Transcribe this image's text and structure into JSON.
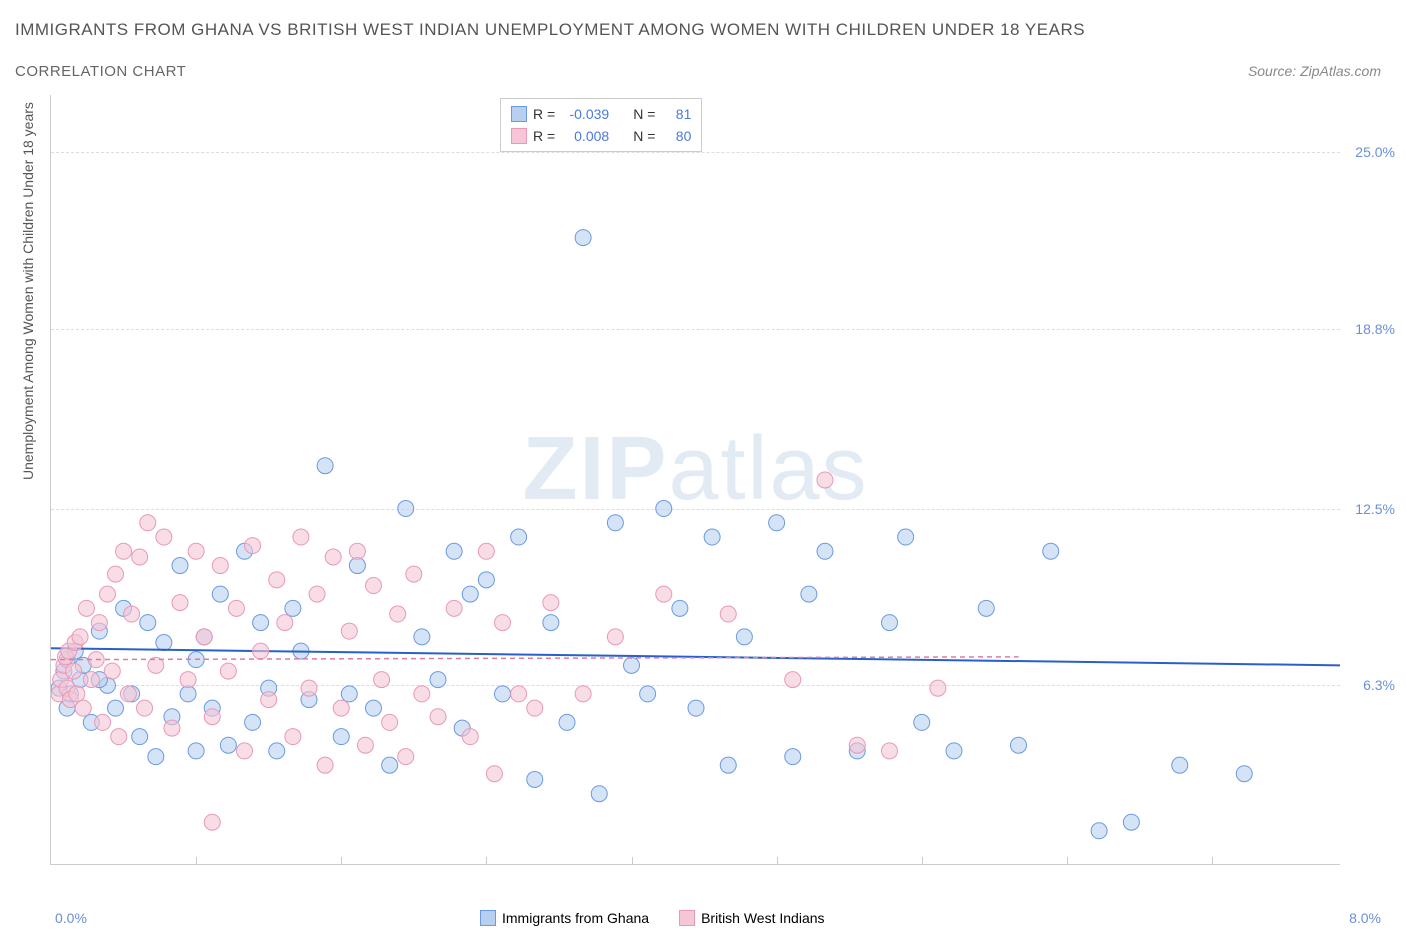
{
  "title": "IMMIGRANTS FROM GHANA VS BRITISH WEST INDIAN UNEMPLOYMENT AMONG WOMEN WITH CHILDREN UNDER 18 YEARS",
  "subtitle": "CORRELATION CHART",
  "source": "Source: ZipAtlas.com",
  "watermark_zip": "ZIP",
  "watermark_atlas": "atlas",
  "y_axis_label": "Unemployment Among Women with Children Under 18 years",
  "x_start": "0.0%",
  "x_end": "8.0%",
  "y_ticks": [
    {
      "label": "25.0%",
      "value": 25.0
    },
    {
      "label": "18.8%",
      "value": 18.8
    },
    {
      "label": "12.5%",
      "value": 12.5
    },
    {
      "label": "6.3%",
      "value": 6.3
    }
  ],
  "legend_top": [
    {
      "color_fill": "#b8d0f0",
      "color_border": "#6a9ae0",
      "r_label": "R =",
      "r_value": "-0.039",
      "n_label": "N =",
      "n_value": "81"
    },
    {
      "color_fill": "#f5c6d6",
      "color_border": "#e898b8",
      "r_label": "R =",
      "r_value": "0.008",
      "n_label": "N =",
      "n_value": "80"
    }
  ],
  "legend_bottom": [
    {
      "color_fill": "#b8d0f0",
      "color_border": "#6a9ae0",
      "label": "Immigrants from Ghana"
    },
    {
      "color_fill": "#f5c6d6",
      "color_border": "#e898b8",
      "label": "British West Indians"
    }
  ],
  "chart": {
    "type": "scatter",
    "xlim": [
      0,
      8
    ],
    "ylim": [
      0,
      27
    ],
    "x_tick_positions": [
      0.9,
      1.8,
      2.7,
      3.6,
      4.5,
      5.4,
      6.3,
      7.2
    ],
    "marker_radius": 8,
    "marker_opacity": 0.6,
    "background_color": "#ffffff",
    "grid_color": "#dddddd",
    "series": [
      {
        "name": "ghana",
        "fill": "#b8d0f0",
        "stroke": "#6a9ae0",
        "trend": {
          "y_start": 7.6,
          "y_end": 7.0,
          "color": "#2a5fc9",
          "width": 2,
          "x_end": 8.0,
          "style": "solid"
        },
        "points": [
          [
            0.05,
            6.2
          ],
          [
            0.08,
            6.8
          ],
          [
            0.1,
            5.5
          ],
          [
            0.1,
            7.2
          ],
          [
            0.12,
            6.0
          ],
          [
            0.15,
            7.5
          ],
          [
            0.18,
            6.5
          ],
          [
            0.2,
            7.0
          ],
          [
            0.25,
            5.0
          ],
          [
            0.3,
            8.2
          ],
          [
            0.35,
            6.3
          ],
          [
            0.4,
            5.5
          ],
          [
            0.45,
            9.0
          ],
          [
            0.5,
            6.0
          ],
          [
            0.55,
            4.5
          ],
          [
            0.6,
            8.5
          ],
          [
            0.65,
            3.8
          ],
          [
            0.7,
            7.8
          ],
          [
            0.75,
            5.2
          ],
          [
            0.8,
            10.5
          ],
          [
            0.85,
            6.0
          ],
          [
            0.9,
            4.0
          ],
          [
            0.95,
            8.0
          ],
          [
            1.0,
            5.5
          ],
          [
            1.05,
            9.5
          ],
          [
            1.1,
            4.2
          ],
          [
            1.2,
            11.0
          ],
          [
            1.25,
            5.0
          ],
          [
            1.3,
            8.5
          ],
          [
            1.35,
            6.2
          ],
          [
            1.4,
            4.0
          ],
          [
            1.5,
            9.0
          ],
          [
            1.55,
            7.5
          ],
          [
            1.6,
            5.8
          ],
          [
            1.7,
            14.0
          ],
          [
            1.8,
            4.5
          ],
          [
            1.85,
            6.0
          ],
          [
            1.9,
            10.5
          ],
          [
            2.0,
            5.5
          ],
          [
            2.1,
            3.5
          ],
          [
            2.2,
            12.5
          ],
          [
            2.3,
            8.0
          ],
          [
            2.4,
            6.5
          ],
          [
            2.5,
            11.0
          ],
          [
            2.55,
            4.8
          ],
          [
            2.6,
            9.5
          ],
          [
            2.7,
            10.0
          ],
          [
            2.8,
            6.0
          ],
          [
            2.9,
            11.5
          ],
          [
            3.0,
            3.0
          ],
          [
            3.1,
            8.5
          ],
          [
            3.2,
            5.0
          ],
          [
            3.3,
            22.0
          ],
          [
            3.4,
            2.5
          ],
          [
            3.5,
            12.0
          ],
          [
            3.6,
            7.0
          ],
          [
            3.7,
            6.0
          ],
          [
            3.8,
            12.5
          ],
          [
            3.9,
            9.0
          ],
          [
            4.0,
            5.5
          ],
          [
            4.1,
            11.5
          ],
          [
            4.2,
            3.5
          ],
          [
            4.3,
            8.0
          ],
          [
            4.5,
            12.0
          ],
          [
            4.6,
            3.8
          ],
          [
            4.7,
            9.5
          ],
          [
            4.8,
            11.0
          ],
          [
            5.0,
            4.0
          ],
          [
            5.2,
            8.5
          ],
          [
            5.3,
            11.5
          ],
          [
            5.4,
            5.0
          ],
          [
            5.6,
            4.0
          ],
          [
            5.8,
            9.0
          ],
          [
            6.0,
            4.2
          ],
          [
            6.2,
            11.0
          ],
          [
            6.5,
            1.2
          ],
          [
            6.7,
            1.5
          ],
          [
            7.0,
            3.5
          ],
          [
            7.4,
            3.2
          ],
          [
            0.3,
            6.5
          ],
          [
            0.9,
            7.2
          ]
        ]
      },
      {
        "name": "bwi",
        "fill": "#f5c6d6",
        "stroke": "#e898b8",
        "trend": {
          "y_start": 7.2,
          "y_end": 7.3,
          "color": "#e27aa0",
          "width": 1.5,
          "x_end": 6.0,
          "style": "dashed"
        },
        "points": [
          [
            0.05,
            6.0
          ],
          [
            0.06,
            6.5
          ],
          [
            0.08,
            7.0
          ],
          [
            0.09,
            7.3
          ],
          [
            0.1,
            6.2
          ],
          [
            0.11,
            7.5
          ],
          [
            0.12,
            5.8
          ],
          [
            0.14,
            6.8
          ],
          [
            0.15,
            7.8
          ],
          [
            0.16,
            6.0
          ],
          [
            0.18,
            8.0
          ],
          [
            0.2,
            5.5
          ],
          [
            0.22,
            9.0
          ],
          [
            0.25,
            6.5
          ],
          [
            0.28,
            7.2
          ],
          [
            0.3,
            8.5
          ],
          [
            0.32,
            5.0
          ],
          [
            0.35,
            9.5
          ],
          [
            0.38,
            6.8
          ],
          [
            0.4,
            10.2
          ],
          [
            0.42,
            4.5
          ],
          [
            0.45,
            11.0
          ],
          [
            0.48,
            6.0
          ],
          [
            0.5,
            8.8
          ],
          [
            0.55,
            10.8
          ],
          [
            0.58,
            5.5
          ],
          [
            0.6,
            12.0
          ],
          [
            0.65,
            7.0
          ],
          [
            0.7,
            11.5
          ],
          [
            0.75,
            4.8
          ],
          [
            0.8,
            9.2
          ],
          [
            0.85,
            6.5
          ],
          [
            0.9,
            11.0
          ],
          [
            0.95,
            8.0
          ],
          [
            1.0,
            5.2
          ],
          [
            1.05,
            10.5
          ],
          [
            1.1,
            6.8
          ],
          [
            1.15,
            9.0
          ],
          [
            1.2,
            4.0
          ],
          [
            1.25,
            11.2
          ],
          [
            1.3,
            7.5
          ],
          [
            1.35,
            5.8
          ],
          [
            1.4,
            10.0
          ],
          [
            1.45,
            8.5
          ],
          [
            1.5,
            4.5
          ],
          [
            1.55,
            11.5
          ],
          [
            1.6,
            6.2
          ],
          [
            1.65,
            9.5
          ],
          [
            1.7,
            3.5
          ],
          [
            1.75,
            10.8
          ],
          [
            1.8,
            5.5
          ],
          [
            1.85,
            8.2
          ],
          [
            1.9,
            11.0
          ],
          [
            1.95,
            4.2
          ],
          [
            2.0,
            9.8
          ],
          [
            2.05,
            6.5
          ],
          [
            2.1,
            5.0
          ],
          [
            2.15,
            8.8
          ],
          [
            2.2,
            3.8
          ],
          [
            2.25,
            10.2
          ],
          [
            2.3,
            6.0
          ],
          [
            2.4,
            5.2
          ],
          [
            2.5,
            9.0
          ],
          [
            2.6,
            4.5
          ],
          [
            2.7,
            11.0
          ],
          [
            2.75,
            3.2
          ],
          [
            2.8,
            8.5
          ],
          [
            2.9,
            6.0
          ],
          [
            3.0,
            5.5
          ],
          [
            3.1,
            9.2
          ],
          [
            3.3,
            6.0
          ],
          [
            3.5,
            8.0
          ],
          [
            3.8,
            9.5
          ],
          [
            4.2,
            8.8
          ],
          [
            4.6,
            6.5
          ],
          [
            4.8,
            13.5
          ],
          [
            5.0,
            4.2
          ],
          [
            5.2,
            4.0
          ],
          [
            5.5,
            6.2
          ],
          [
            1.0,
            1.5
          ]
        ]
      }
    ]
  }
}
